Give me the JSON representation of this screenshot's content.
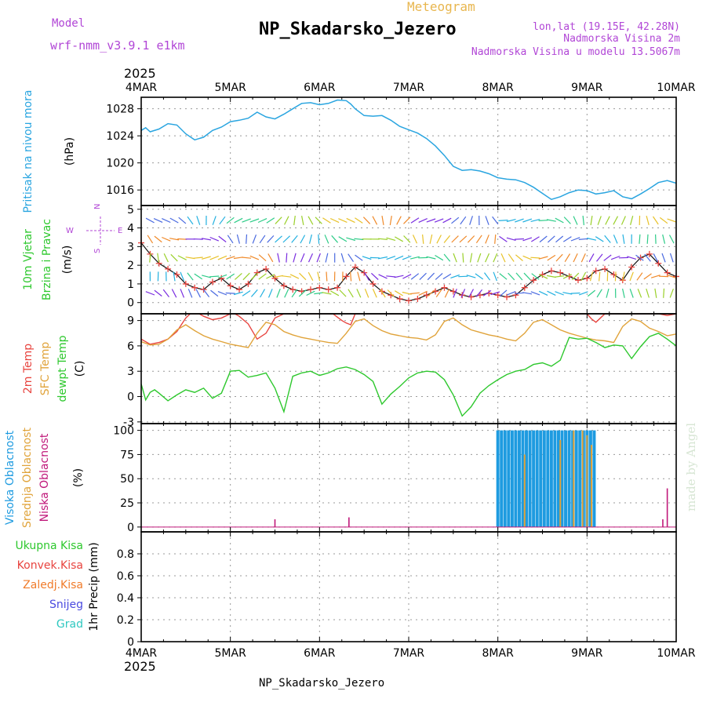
{
  "header": {
    "model_label": "Model",
    "model_name": "wrf-nmm_v3.9.1 e1km",
    "meteogram_label": "Meteogram",
    "station_title": "NP_Skadarsko_Jezero",
    "coords": "lon,lat (19.15E, 42.28N)",
    "elevation": "Nadmorska Visina 2m",
    "model_elevation": "Nadmorska Visina u modelu 13.5067m",
    "year_top": "2025",
    "year_bottom": "2025",
    "footer_station": "NP_Skadarsko_Jezero",
    "watermark": "made by Angel",
    "colors": {
      "purple": "#b146d6",
      "orange": "#e8b64e",
      "pressure": "#2aa5e0",
      "temp2m": "#e8443f",
      "sfc": "#e0a33a",
      "dewpt": "#2ec82e",
      "cloud_high": "#1e9be0",
      "cloud_mid": "#e0a33a",
      "cloud_low": "#c0187a"
    }
  },
  "time_axis": {
    "labels": [
      "4MAR",
      "5MAR",
      "6MAR",
      "7MAR",
      "8MAR",
      "9MAR",
      "10MAR"
    ]
  },
  "wind_key": {
    "n": "N",
    "e": "E",
    "w": "W",
    "s": "S",
    "wind_color_key": "purple-green-orange"
  },
  "chart_data": [
    {
      "id": "pressure",
      "type": "line",
      "ylabel_lines": [
        "Pritisak na nivou mora"
      ],
      "unit": "(hPa)",
      "ylim": [
        1013.7,
        1029.7
      ],
      "yticks": [
        1016,
        1020,
        1024,
        1028
      ],
      "grid": true,
      "series": [
        {
          "x": [
            0,
            0.05,
            0.1,
            0.2,
            0.3,
            0.4,
            0.5,
            0.6,
            0.7,
            0.8,
            0.9,
            1.0,
            1.1,
            1.2,
            1.3,
            1.4,
            1.5,
            1.6,
            1.7,
            1.8,
            1.9,
            2.0,
            2.1,
            2.2,
            2.3,
            2.35,
            2.4,
            2.5,
            2.6,
            2.7,
            2.8,
            2.9,
            3.0,
            3.1,
            3.2,
            3.3,
            3.4,
            3.5,
            3.6,
            3.7,
            3.8,
            3.9,
            4.0,
            4.1,
            4.2,
            4.3,
            4.4,
            4.5,
            4.6,
            4.7,
            4.8,
            4.9,
            5.0,
            5.1,
            5.2,
            5.3,
            5.4,
            5.5,
            5.6,
            5.7,
            5.8,
            5.9,
            6.0
          ],
          "values": [
            1024.8,
            1025.2,
            1024.6,
            1025.0,
            1025.8,
            1025.6,
            1024.3,
            1023.4,
            1023.8,
            1024.8,
            1025.3,
            1026.1,
            1026.3,
            1026.6,
            1027.5,
            1026.8,
            1026.5,
            1027.2,
            1028.0,
            1028.8,
            1028.9,
            1028.6,
            1028.8,
            1029.3,
            1029.2,
            1028.7,
            1028.0,
            1027.0,
            1026.9,
            1027.0,
            1026.3,
            1025.4,
            1024.9,
            1024.4,
            1023.6,
            1022.5,
            1021.1,
            1019.5,
            1018.9,
            1019.0,
            1018.8,
            1018.4,
            1017.8,
            1017.6,
            1017.5,
            1017.1,
            1016.4,
            1015.5,
            1014.6,
            1015.0,
            1015.6,
            1016.0,
            1015.9,
            1015.4,
            1015.6,
            1015.9,
            1015.0,
            1014.7,
            1015.4,
            1016.2,
            1017.1,
            1017.4,
            1017.0
          ]
        }
      ]
    },
    {
      "id": "wind",
      "type": "line",
      "ylabel_lines": [
        "10m Vjetar",
        "Brzina i Pravac"
      ],
      "unit": "(m/s)",
      "ylim": [
        -0.6,
        5.2
      ],
      "yticks": [
        0,
        1,
        2,
        3,
        4,
        5
      ],
      "grid": true,
      "series": [
        {
          "name": "",
          "x": [
            0,
            0.1,
            0.2,
            0.3,
            0.4,
            0.5,
            0.6,
            0.7,
            0.8,
            0.9,
            1.0,
            1.1,
            1.2,
            1.3,
            1.4,
            1.5,
            1.6,
            1.7,
            1.8,
            1.9,
            2.0,
            2.1,
            2.2,
            2.3,
            2.4,
            2.5,
            2.6,
            2.7,
            2.8,
            2.9,
            3.0,
            3.1,
            3.2,
            3.3,
            3.4,
            3.5,
            3.6,
            3.7,
            3.8,
            3.9,
            4.0,
            4.1,
            4.2,
            4.3,
            4.4,
            4.5,
            4.6,
            4.7,
            4.8,
            4.9,
            5.0,
            5.1,
            5.2,
            5.3,
            5.4,
            5.5,
            5.6,
            5.7,
            5.8,
            5.9,
            6.0
          ],
          "values": [
            3.2,
            2.6,
            2.1,
            1.8,
            1.5,
            1.0,
            0.8,
            0.7,
            1.1,
            1.3,
            0.9,
            0.7,
            1.0,
            1.6,
            1.8,
            1.3,
            0.9,
            0.7,
            0.6,
            0.7,
            0.8,
            0.7,
            0.8,
            1.4,
            1.9,
            1.6,
            1.0,
            0.6,
            0.4,
            0.2,
            0.1,
            0.2,
            0.4,
            0.6,
            0.8,
            0.6,
            0.4,
            0.3,
            0.4,
            0.5,
            0.4,
            0.3,
            0.4,
            0.8,
            1.2,
            1.5,
            1.7,
            1.6,
            1.4,
            1.2,
            1.3,
            1.7,
            1.8,
            1.5,
            1.2,
            1.9,
            2.4,
            2.6,
            2.1,
            1.6,
            1.4
          ]
        }
      ]
    },
    {
      "id": "temperature",
      "type": "line",
      "ylabel_lines": [
        "2m Temp",
        "SFC Temp",
        "dewpt Temp"
      ],
      "unit": "(C)",
      "ylim": [
        -3.2,
        9.8
      ],
      "yticks": [
        -3,
        0,
        3,
        6,
        9
      ],
      "grid": true,
      "series": [
        {
          "name": "2m Temp",
          "x": [
            0,
            0.1,
            0.2,
            0.3,
            0.4,
            0.5,
            0.55,
            0.6,
            0.65,
            0.7,
            0.8,
            0.9,
            1.0,
            1.05,
            1.1,
            1.2,
            1.3,
            1.4,
            1.5,
            1.6,
            1.7,
            1.8,
            1.9,
            2.0,
            2.05,
            2.1,
            2.15,
            2.2,
            2.25,
            2.3,
            2.35,
            2.4,
            2.5,
            2.6,
            2.7,
            2.8,
            2.9,
            3.0,
            3.1,
            3.2,
            3.3,
            3.4,
            3.5,
            3.6,
            3.7,
            3.8,
            3.9,
            4.0,
            4.1,
            4.2,
            4.3,
            4.4,
            4.5,
            4.6,
            4.7,
            4.8,
            4.9,
            5.0,
            5.05,
            5.1,
            5.2,
            5.3,
            5.4,
            5.5,
            5.6,
            5.7,
            5.8,
            5.9,
            6.0
          ],
          "values": [
            6.8,
            6.2,
            6.4,
            6.8,
            7.7,
            9.3,
            9.8,
            9.8,
            9.8,
            9.5,
            9.1,
            9.3,
            9.8,
            9.8,
            9.5,
            8.6,
            6.8,
            7.5,
            9.3,
            9.8,
            9.8,
            9.8,
            9.8,
            9.8,
            9.8,
            9.8,
            9.8,
            9.4,
            9.0,
            8.7,
            8.5,
            9.8,
            9.8,
            9.8,
            9.8,
            9.8,
            9.8,
            9.8,
            9.8,
            9.8,
            9.8,
            9.8,
            9.8,
            9.8,
            9.8,
            9.8,
            9.8,
            9.8,
            9.8,
            9.8,
            9.8,
            9.8,
            9.8,
            9.8,
            9.8,
            9.8,
            9.8,
            9.8,
            9.2,
            8.8,
            9.8,
            9.8,
            9.8,
            9.8,
            9.8,
            9.8,
            9.8,
            9.6,
            9.8
          ]
        },
        {
          "name": "SFC Temp",
          "x": [
            0,
            0.1,
            0.2,
            0.3,
            0.4,
            0.5,
            0.6,
            0.7,
            0.8,
            0.9,
            1.0,
            1.1,
            1.2,
            1.3,
            1.4,
            1.5,
            1.6,
            1.7,
            1.8,
            1.9,
            2.0,
            2.1,
            2.2,
            2.3,
            2.4,
            2.5,
            2.6,
            2.7,
            2.8,
            2.9,
            3.0,
            3.1,
            3.2,
            3.3,
            3.4,
            3.5,
            3.6,
            3.7,
            3.8,
            3.9,
            4.0,
            4.1,
            4.2,
            4.3,
            4.4,
            4.5,
            4.6,
            4.7,
            4.8,
            4.9,
            5.0,
            5.1,
            5.2,
            5.3,
            5.4,
            5.5,
            5.6,
            5.7,
            5.8,
            5.9,
            6.0
          ],
          "values": [
            6.5,
            6.1,
            6.2,
            6.8,
            7.9,
            8.5,
            7.8,
            7.2,
            6.8,
            6.5,
            6.2,
            6.0,
            5.8,
            7.5,
            8.8,
            8.5,
            7.7,
            7.3,
            7.0,
            6.8,
            6.6,
            6.4,
            6.3,
            7.5,
            8.9,
            9.2,
            8.4,
            7.8,
            7.4,
            7.2,
            7.0,
            6.9,
            6.7,
            7.3,
            8.9,
            9.3,
            8.5,
            7.9,
            7.6,
            7.3,
            7.1,
            6.8,
            6.6,
            7.5,
            8.8,
            9.1,
            8.5,
            7.9,
            7.5,
            7.2,
            6.9,
            6.7,
            6.6,
            6.4,
            8.3,
            9.2,
            8.9,
            8.1,
            7.7,
            7.2,
            7.4
          ]
        },
        {
          "name": "dewpt Temp",
          "x": [
            0,
            0.05,
            0.1,
            0.15,
            0.2,
            0.3,
            0.4,
            0.5,
            0.6,
            0.7,
            0.8,
            0.9,
            1.0,
            1.1,
            1.2,
            1.3,
            1.4,
            1.5,
            1.6,
            1.7,
            1.8,
            1.9,
            2.0,
            2.1,
            2.2,
            2.3,
            2.4,
            2.5,
            2.6,
            2.7,
            2.8,
            2.9,
            3.0,
            3.1,
            3.2,
            3.3,
            3.4,
            3.5,
            3.6,
            3.7,
            3.8,
            3.9,
            4.0,
            4.1,
            4.2,
            4.3,
            4.4,
            4.5,
            4.6,
            4.7,
            4.8,
            4.9,
            5.0,
            5.1,
            5.2,
            5.3,
            5.4,
            5.5,
            5.6,
            5.7,
            5.8,
            5.9,
            6.0
          ],
          "values": [
            1.5,
            -0.4,
            0.5,
            0.8,
            0.4,
            -0.5,
            0.2,
            0.8,
            0.5,
            1.0,
            -0.2,
            0.4,
            3.0,
            3.1,
            2.3,
            2.5,
            2.8,
            1.0,
            -1.8,
            2.4,
            2.8,
            3.0,
            2.5,
            2.8,
            3.3,
            3.5,
            3.2,
            2.6,
            1.8,
            -0.9,
            0.3,
            1.2,
            2.2,
            2.8,
            3.0,
            2.9,
            2.0,
            0.2,
            -2.3,
            -1.2,
            0.4,
            1.3,
            2.0,
            2.6,
            3.0,
            3.2,
            3.8,
            4.0,
            3.6,
            4.3,
            7.0,
            6.8,
            6.9,
            6.4,
            5.8,
            6.1,
            6.0,
            4.5,
            5.9,
            7.1,
            7.5,
            6.8,
            6.0
          ]
        }
      ]
    },
    {
      "id": "clouds",
      "type": "bar",
      "ylabel_lines": [
        "Visoka Oblacnost",
        "Srednja Oblacnost",
        "Niska Oblacnost"
      ],
      "unit": "(%)",
      "ylim": [
        -5,
        107
      ],
      "yticks": [
        0,
        25,
        50,
        75,
        100
      ],
      "grid": true,
      "series": [
        {
          "name": "Visoka Oblacnost",
          "x_start": 4.0,
          "x_end": 5.1,
          "step": 0.04,
          "values": [
            100,
            100,
            100,
            100,
            100,
            100,
            100,
            100,
            100,
            100,
            100,
            100,
            100,
            100,
            100,
            100,
            100,
            100,
            100,
            100,
            100,
            100,
            100,
            100,
            100,
            100,
            100,
            100
          ]
        },
        {
          "name": "Srednja Oblacnost",
          "x": [
            4.3,
            4.7,
            4.85,
            4.95,
            5.0,
            5.05
          ],
          "values": [
            75,
            90,
            100,
            100,
            95,
            85
          ]
        },
        {
          "name": "Niska Oblacnost",
          "x": [
            1.5,
            2.33,
            5.85,
            5.9
          ],
          "values": [
            8,
            10,
            8,
            40
          ]
        }
      ]
    },
    {
      "id": "precipitation",
      "type": "bar",
      "ylabel_lines": [
        "1hr Precip (mm)"
      ],
      "legend": [
        "Ukupna Kisa",
        "Konvek.Kisa",
        "Zaledj.Kisa",
        "Snijeg",
        "Grad"
      ],
      "legend_colors": [
        "#2ec82e",
        "#e8443f",
        "#f07b2a",
        "#4a4ae0",
        "#2ec8c0"
      ],
      "ylim": [
        0,
        1.0
      ],
      "yticks": [
        0,
        0.2,
        0.4,
        0.6,
        0.8
      ],
      "tick_labels": [
        "0",
        "0.2",
        "0.4",
        "0.6",
        "0.8"
      ],
      "grid": true,
      "values": []
    }
  ]
}
